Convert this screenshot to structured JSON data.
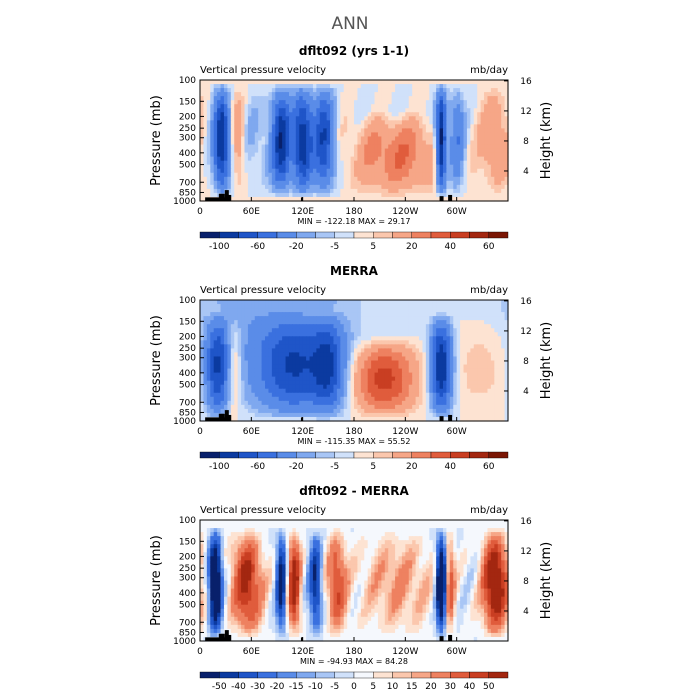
{
  "page": {
    "main_title": "ANN"
  },
  "chart_data": [
    {
      "type": "heatmap",
      "title": "dflt092 (yrs 1-1)",
      "left_label": "Vertical pressure velocity",
      "right_label": "mb/day",
      "ylabel": "Pressure (mb)",
      "ylabel_right": "Height (km)",
      "y_ticks": [
        "100",
        "150",
        "200",
        "250",
        "300",
        "400",
        "500",
        "700",
        "850",
        "1000"
      ],
      "y_right_ticks": [
        "16",
        "12",
        "8",
        "4"
      ],
      "x_ticks": [
        "0",
        "60E",
        "120E",
        "180",
        "120W",
        "60W"
      ],
      "stats": "MIN = -122.18   MAX =  29.17",
      "colorbar_labels": [
        "-100",
        "-60",
        "-20",
        "-5",
        "5",
        "20",
        "40",
        "60"
      ],
      "colorbar_colors": [
        "#08206b",
        "#0b3aa0",
        "#1f55c8",
        "#3a70df",
        "#5a8ce8",
        "#7fa8ef",
        "#a9c6f5",
        "#d0e1fa",
        "#fde3d2",
        "#fbc7ad",
        "#f6a687",
        "#ee8160",
        "#e05c3c",
        "#c93e22",
        "#a32710",
        "#7a1604"
      ],
      "value_range": [
        -122.18,
        29.17
      ],
      "field": "mean"
    },
    {
      "type": "heatmap",
      "title": "MERRA",
      "left_label": "Vertical pressure velocity",
      "right_label": "mb/day",
      "ylabel": "Pressure (mb)",
      "ylabel_right": "Height (km)",
      "y_ticks": [
        "100",
        "150",
        "200",
        "250",
        "300",
        "400",
        "500",
        "700",
        "850",
        "1000"
      ],
      "y_right_ticks": [
        "16",
        "12",
        "8",
        "4"
      ],
      "x_ticks": [
        "0",
        "60E",
        "120E",
        "180",
        "120W",
        "60W"
      ],
      "stats": "MIN = -115.35   MAX =  55.52",
      "colorbar_labels": [
        "-100",
        "-60",
        "-20",
        "-5",
        "5",
        "20",
        "40",
        "60"
      ],
      "colorbar_colors": [
        "#08206b",
        "#0b3aa0",
        "#1f55c8",
        "#3a70df",
        "#5a8ce8",
        "#7fa8ef",
        "#a9c6f5",
        "#d0e1fa",
        "#fde3d2",
        "#fbc7ad",
        "#f6a687",
        "#ee8160",
        "#e05c3c",
        "#c93e22",
        "#a32710",
        "#7a1604"
      ],
      "value_range": [
        -115.35,
        55.52
      ],
      "field": "obs"
    },
    {
      "type": "heatmap",
      "title": "dflt092 - MERRA",
      "left_label": "Vertical pressure velocity",
      "right_label": "mb/day",
      "ylabel": "Pressure (mb)",
      "ylabel_right": "Height (km)",
      "y_ticks": [
        "100",
        "150",
        "200",
        "250",
        "300",
        "400",
        "500",
        "700",
        "850",
        "1000"
      ],
      "y_right_ticks": [
        "16",
        "12",
        "8",
        "4"
      ],
      "x_ticks": [
        "0",
        "60E",
        "120E",
        "180",
        "120W",
        "60W"
      ],
      "stats": "MIN = -94.93   MAX =  84.28",
      "colorbar_labels": [
        "-50",
        "-40",
        "-30",
        "-20",
        "-15",
        "-10",
        "-5",
        "0",
        "5",
        "10",
        "15",
        "20",
        "30",
        "40",
        "50"
      ],
      "colorbar_colors": [
        "#08206b",
        "#0b3aa0",
        "#1f55c8",
        "#3a70df",
        "#5a8ce8",
        "#7fa8ef",
        "#a9c6f5",
        "#d0e1fa",
        "#f5f8fd",
        "#fde3d2",
        "#fbc7ad",
        "#f6a687",
        "#ee8160",
        "#e05c3c",
        "#c93e22",
        "#a32710"
      ],
      "value_range": [
        -94.93,
        84.28
      ],
      "field": "diff"
    }
  ]
}
